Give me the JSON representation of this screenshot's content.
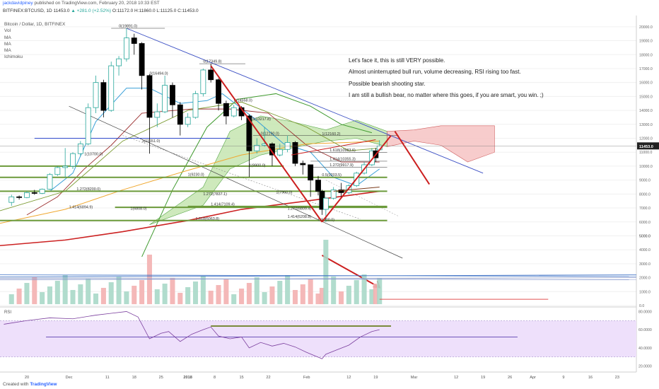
{
  "header": {
    "author": "jackdavidpiney",
    "published_text": "published on TradingView.com, February 20, 2018 10:33 EST"
  },
  "symbol_bar": {
    "symbol": "BITFINEX:BTCUSD, 1D",
    "last": "11453.0",
    "change": "▲ +281.0 (+2.52%)",
    "ohlc": "O:11172.0 H:11860.0 L:11125.0 C:11453.0"
  },
  "legend": {
    "title": "Bitcoin / Dollar, 1D, BITFINEX",
    "indicators": [
      "Vol",
      "MA",
      "MA",
      "MA",
      "Ichimoku"
    ]
  },
  "comment": [
    "Let's face it, this is still VERY possible.",
    "Almost uninterrupted bull run, volume decreasing, RSI rising too fast.",
    "Possible bearish shooting star.",
    "I am still a bullish bear, no matter where this goes, if you are smart, you win. ;)"
  ],
  "footer": {
    "created_with": "Created with",
    "brand": "TradingView"
  },
  "colors": {
    "up": "#26a69a",
    "down": "#000000",
    "fib_green": "#6b9a3a",
    "arrow_red": "#cc1f1f",
    "trend_blue": "#3b4fc4",
    "ma_red": "#cc2222",
    "ma_orange": "#f0a830",
    "cloud_green": "#c5e5b0",
    "cloud_red": "#f6c6c6",
    "rsi_band": "#eee0fb",
    "rsi_line": "#7b3f9e",
    "price_label_bg": "#222222"
  },
  "chart_data": [
    {
      "type": "candlestick",
      "title": "Bitcoin / Dollar, 1D, BITFINEX",
      "y_ticks": [
        "20000.0",
        "19000.0",
        "18000.0",
        "17000.0",
        "16000.0",
        "15000.0",
        "14000.0",
        "13000.0",
        "12000.0",
        "11000.0",
        "10000.0",
        "9000.0",
        "8000.0",
        "7000.0",
        "6000.0",
        "5000.0",
        "4000.0",
        "3000.0",
        "2000.0",
        "1000.0",
        "0.0"
      ],
      "ylim": [
        0,
        20500
      ],
      "x_ticks": [
        "20",
        "Dec",
        "11",
        "18",
        "25",
        "2018",
        "8",
        "15",
        "22",
        "Feb",
        "12",
        "19",
        "Mar",
        "12",
        "19",
        "26",
        "Apr",
        "9",
        "16",
        "23"
      ],
      "x_range": [
        "2017-11-13",
        "2018-04-28"
      ],
      "last_price_label": "11453.0",
      "candles": [
        {
          "d": "2017-11-16",
          "o": 7400,
          "h": 7950,
          "l": 7150,
          "c": 7800
        },
        {
          "d": "2017-11-18",
          "o": 7800,
          "h": 7900,
          "l": 7600,
          "c": 7750
        },
        {
          "d": "2017-11-20",
          "o": 7750,
          "h": 8200,
          "l": 7700,
          "c": 8100
        },
        {
          "d": "2017-11-22",
          "o": 8100,
          "h": 8300,
          "l": 7950,
          "c": 8050
        },
        {
          "d": "2017-11-24",
          "o": 8050,
          "h": 8400,
          "l": 8000,
          "c": 8350
        },
        {
          "d": "2017-11-26",
          "o": 8350,
          "h": 9500,
          "l": 8300,
          "c": 9400
        },
        {
          "d": "2017-11-28",
          "o": 9400,
          "h": 10000,
          "l": 9300,
          "c": 9900
        },
        {
          "d": "2017-11-30",
          "o": 9900,
          "h": 11300,
          "l": 9200,
          "c": 10000
        },
        {
          "d": "2017-12-02",
          "o": 10000,
          "h": 11000,
          "l": 9800,
          "c": 10900
        },
        {
          "d": "2017-12-04",
          "o": 10900,
          "h": 11800,
          "l": 10700,
          "c": 11600
        },
        {
          "d": "2017-12-06",
          "o": 11600,
          "h": 14500,
          "l": 11500,
          "c": 14200
        },
        {
          "d": "2017-12-08",
          "o": 14200,
          "h": 16500,
          "l": 13800,
          "c": 16000
        },
        {
          "d": "2017-12-10",
          "o": 16000,
          "h": 16200,
          "l": 13500,
          "c": 14000
        },
        {
          "d": "2017-12-12",
          "o": 14000,
          "h": 17500,
          "l": 13900,
          "c": 17200
        },
        {
          "d": "2017-12-14",
          "o": 17200,
          "h": 17900,
          "l": 16500,
          "c": 17700
        },
        {
          "d": "2017-12-16",
          "o": 17700,
          "h": 19891,
          "l": 17500,
          "c": 19200
        },
        {
          "d": "2017-12-18",
          "o": 19200,
          "h": 19500,
          "l": 18000,
          "c": 18800
        },
        {
          "d": "2017-12-20",
          "o": 18800,
          "h": 18900,
          "l": 15500,
          "c": 16500
        },
        {
          "d": "2017-12-22",
          "o": 16500,
          "h": 16600,
          "l": 10900,
          "c": 13500
        },
        {
          "d": "2017-12-24",
          "o": 13500,
          "h": 14500,
          "l": 12800,
          "c": 13900
        },
        {
          "d": "2017-12-26",
          "o": 13900,
          "h": 16494,
          "l": 13800,
          "c": 15800
        },
        {
          "d": "2017-12-28",
          "o": 15800,
          "h": 16000,
          "l": 13500,
          "c": 14400
        },
        {
          "d": "2017-12-30",
          "o": 14400,
          "h": 14600,
          "l": 12200,
          "c": 13000
        },
        {
          "d": "2018-01-01",
          "o": 13000,
          "h": 13800,
          "l": 12800,
          "c": 13500
        },
        {
          "d": "2018-01-03",
          "o": 13500,
          "h": 15400,
          "l": 13400,
          "c": 15200
        },
        {
          "d": "2018-01-05",
          "o": 15200,
          "h": 17000,
          "l": 15000,
          "c": 16900
        },
        {
          "d": "2018-01-07",
          "o": 16900,
          "h": 17349,
          "l": 16000,
          "c": 16200
        },
        {
          "d": "2018-01-09",
          "o": 16200,
          "h": 16300,
          "l": 14000,
          "c": 14500
        },
        {
          "d": "2018-01-11",
          "o": 14500,
          "h": 14700,
          "l": 13000,
          "c": 13600
        },
        {
          "d": "2018-01-13",
          "o": 13600,
          "h": 14400,
          "l": 13500,
          "c": 14200
        },
        {
          "d": "2018-01-15",
          "o": 14200,
          "h": 14300,
          "l": 13300,
          "c": 13600
        },
        {
          "d": "2018-01-17",
          "o": 13600,
          "h": 13700,
          "l": 9230,
          "c": 11100
        },
        {
          "d": "2018-01-19",
          "o": 11100,
          "h": 12000,
          "l": 10900,
          "c": 11500
        },
        {
          "d": "2018-01-21",
          "o": 11500,
          "h": 12800,
          "l": 11400,
          "c": 11600
        },
        {
          "d": "2018-01-23",
          "o": 11600,
          "h": 11700,
          "l": 10000,
          "c": 10800
        },
        {
          "d": "2018-01-25",
          "o": 10800,
          "h": 11600,
          "l": 10700,
          "c": 11200
        },
        {
          "d": "2018-01-27",
          "o": 11200,
          "h": 12200,
          "l": 11000,
          "c": 11700
        },
        {
          "d": "2018-01-29",
          "o": 11700,
          "h": 11800,
          "l": 10000,
          "c": 10200
        },
        {
          "d": "2018-01-31",
          "o": 10200,
          "h": 10400,
          "l": 9400,
          "c": 10100
        },
        {
          "d": "2018-02-02",
          "o": 10100,
          "h": 10100,
          "l": 7800,
          "c": 9000
        },
        {
          "d": "2018-02-04",
          "o": 9000,
          "h": 9300,
          "l": 7900,
          "c": 8200
        },
        {
          "d": "2018-02-05",
          "o": 8200,
          "h": 8300,
          "l": 6500,
          "c": 6900
        },
        {
          "d": "2018-02-06",
          "o": 6900,
          "h": 7800,
          "l": 6000,
          "c": 7700
        },
        {
          "d": "2018-02-08",
          "o": 7700,
          "h": 8500,
          "l": 7600,
          "c": 8300
        },
        {
          "d": "2018-02-10",
          "o": 8300,
          "h": 8800,
          "l": 7800,
          "c": 8100
        },
        {
          "d": "2018-02-12",
          "o": 8100,
          "h": 8700,
          "l": 8000,
          "c": 8600
        },
        {
          "d": "2018-02-14",
          "o": 8600,
          "h": 9600,
          "l": 8500,
          "c": 9500
        },
        {
          "d": "2018-02-16",
          "o": 9500,
          "h": 10300,
          "l": 9400,
          "c": 10100
        },
        {
          "d": "2018-02-18",
          "o": 10100,
          "h": 11300,
          "l": 10000,
          "c": 11100
        },
        {
          "d": "2018-02-19",
          "o": 11100,
          "h": 11300,
          "l": 10300,
          "c": 10600
        },
        {
          "d": "2018-02-20",
          "o": 11172,
          "h": 11860,
          "l": 11125,
          "c": 11453
        }
      ],
      "fib_labels": [
        {
          "text": "0(19891.0)",
          "price": 19891,
          "d": "2017-12-14"
        },
        {
          "text": "0(17349.8)",
          "price": 17349,
          "d": "2018-01-05"
        },
        {
          "text": "0(16494.0)",
          "price": 16494,
          "d": "2017-12-22"
        },
        {
          "text": "0(14558.0)",
          "price": 14558,
          "d": "2018-01-13"
        },
        {
          "text": "0.5(13217.8)",
          "price": 13217,
          "d": "2018-01-17"
        },
        {
          "text": "0(12190.0)",
          "price": 12190,
          "d": "2018-01-20"
        },
        {
          "text": "1(11651.0)",
          "price": 11651,
          "d": "2017-12-20"
        },
        {
          "text": "1(12160.2)",
          "price": 12160,
          "d": "2018-02-05"
        },
        {
          "text": "1.618(10983.6)",
          "price": 10983,
          "d": "2018-02-07"
        },
        {
          "text": "1(10700.0)",
          "price": 10700,
          "d": "2017-12-05"
        },
        {
          "text": "1.414(10355.3)",
          "price": 10355,
          "d": "2018-02-07"
        },
        {
          "text": "1.272(9917.9)",
          "price": 9917,
          "d": "2018-02-07"
        },
        {
          "text": "1(9900.0)",
          "price": 9900,
          "d": "2018-01-17"
        },
        {
          "text": "0.5(9203.5)",
          "price": 9203,
          "d": "2018-02-05"
        },
        {
          "text": "1(9230.0)",
          "price": 9230,
          "d": "2018-01-01"
        },
        {
          "text": "1.272(8200.0)",
          "price": 8200,
          "d": "2017-12-03"
        },
        {
          "text": "1(7960.0)",
          "price": 7960,
          "d": "2018-01-24"
        },
        {
          "text": "1.272(7837.1)",
          "price": 7837,
          "d": "2018-01-05"
        },
        {
          "text": "1.414(7109.4)",
          "price": 7109,
          "d": "2018-01-07"
        },
        {
          "text": "1.414(6894.9)",
          "price": 6894,
          "d": "2017-12-01"
        },
        {
          "text": "1(6808.0)",
          "price": 6808,
          "d": "2017-12-17"
        },
        {
          "text": "1.272(6809.4)",
          "price": 6809,
          "d": "2018-01-27"
        },
        {
          "text": "1.414(6208.8)",
          "price": 6208,
          "d": "2018-01-27"
        },
        {
          "text": "1.618(6063.8)",
          "price": 6063,
          "d": "2018-01-03"
        },
        {
          "text": "0(6000.0)",
          "price": 6000,
          "d": "2018-02-04"
        }
      ]
    },
    {
      "type": "bar",
      "title": "Vol",
      "y_ticks": [
        "5000.0",
        "4000.0",
        "3000.0",
        "2000.0",
        "1000.0",
        "0.0"
      ]
    },
    {
      "type": "line",
      "title": "RSI",
      "y_ticks": [
        "80.0000",
        "60.0000",
        "40.0000",
        "20.0000"
      ],
      "ylim": [
        15,
        85
      ]
    }
  ]
}
